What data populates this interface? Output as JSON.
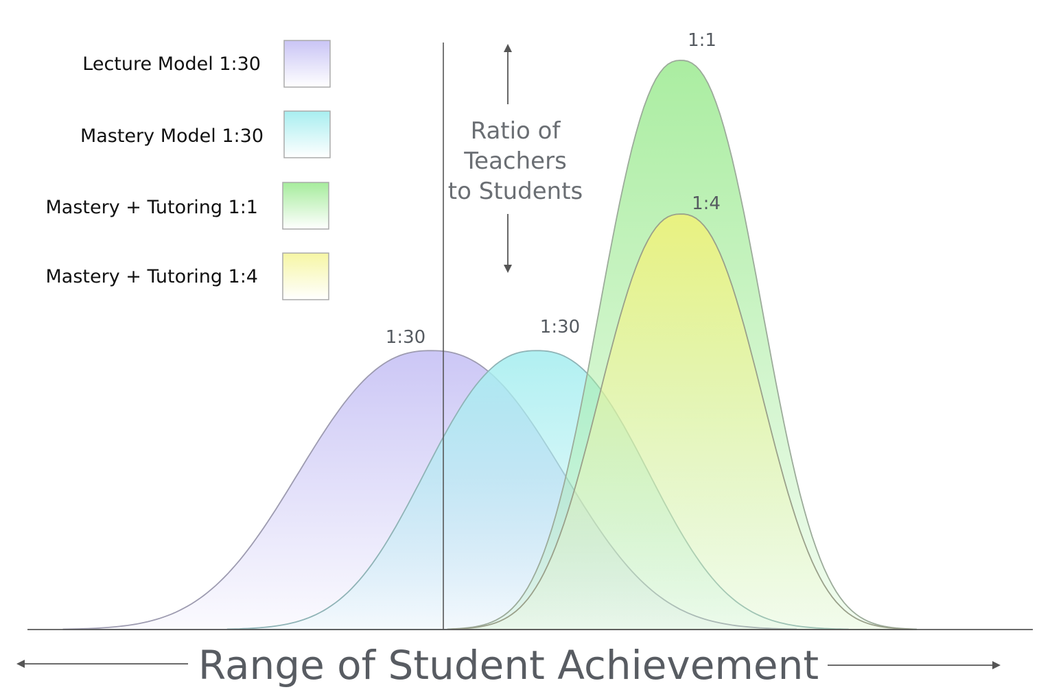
{
  "chart_data": {
    "type": "area",
    "title": "",
    "xlabel": "Range of Student Achievement",
    "ylabel": "",
    "annotation": {
      "text_lines": [
        "Ratio of",
        "Teachers",
        "to Students"
      ]
    },
    "legend": {
      "position": "top-left",
      "entries": [
        {
          "name": "Lecture Model 1:30",
          "color": "#c9c4f5"
        },
        {
          "name": "Mastery Model 1:30",
          "color": "#a8eef0"
        },
        {
          "name": "Mastery + Tutoring 1:1",
          "color": "#a6ec9c"
        },
        {
          "name": "Mastery + Tutoring 1:4",
          "color": "#f6f6a4"
        }
      ]
    },
    "series": [
      {
        "name": "Lecture Model 1:30",
        "peak_label": "1:30",
        "center": 0.42,
        "width": 0.13,
        "height": 0.49,
        "color": "#c9c4f5"
      },
      {
        "name": "Mastery Model 1:30",
        "peak_label": "1:30",
        "center": 0.53,
        "width": 0.11,
        "height": 0.49,
        "color": "#a8eef0"
      },
      {
        "name": "Mastery + Tutoring 1:1",
        "peak_label": "1:1",
        "center": 0.68,
        "width": 0.08,
        "height": 1.0,
        "color": "#a6ec9c"
      },
      {
        "name": "Mastery + Tutoring 1:4",
        "peak_label": "1:4",
        "center": 0.68,
        "width": 0.08,
        "height": 0.73,
        "color": "#eef27a"
      }
    ],
    "grid": false
  }
}
